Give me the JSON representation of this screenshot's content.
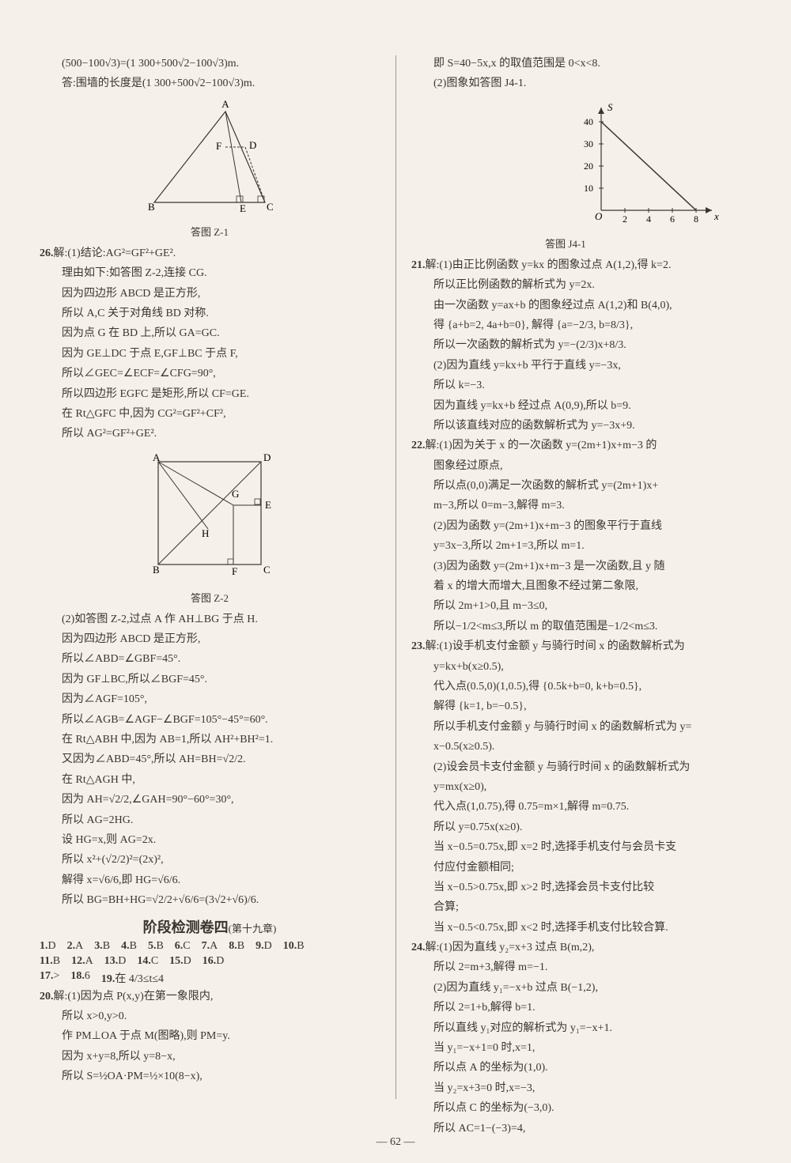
{
  "page_number": "— 62 —",
  "left_col": {
    "top_lines": [
      "(500−100√3)=(1 300+500√2−100√3)m.",
      "答:围墙的长度是(1 300+500√2−100√3)m."
    ],
    "fig1": {
      "caption": "答图 Z-1",
      "labels": {
        "A": "A",
        "B": "B",
        "C": "C",
        "D": "D",
        "E": "E",
        "F": "F"
      }
    },
    "q26": {
      "num": "26.",
      "head": "解:(1)结论:AG²=GF²+GE².",
      "lines": [
        "理由如下:如答图 Z-2,连接 CG.",
        "因为四边形 ABCD 是正方形,",
        "所以 A,C 关于对角线 BD 对称.",
        "因为点 G 在 BD 上,所以 GA=GC.",
        "因为 GE⊥DC 于点 E,GF⊥BC 于点 F,",
        "所以∠GEC=∠ECF=∠CFG=90°,",
        "所以四边形 EGFC 是矩形,所以 CF=GE.",
        "在 Rt△GFC 中,因为 CG²=GF²+CF²,",
        "所以 AG²=GF²+GE²."
      ]
    },
    "fig2": {
      "caption": "答图 Z-2",
      "labels": {
        "A": "A",
        "B": "B",
        "C": "C",
        "D": "D",
        "E": "E",
        "F": "F",
        "G": "G",
        "H": "H"
      }
    },
    "q26b": [
      "(2)如答图 Z-2,过点 A 作 AH⊥BG 于点 H.",
      "因为四边形 ABCD 是正方形,",
      "所以∠ABD=∠GBF=45°.",
      "因为 GF⊥BC,所以∠BGF=45°.",
      "因为∠AGF=105°,",
      "所以∠AGB=∠AGF−∠BGF=105°−45°=60°.",
      "在 Rt△ABH 中,因为 AB=1,所以 AH²+BH²=1.",
      "又因为∠ABD=45°,所以 AH=BH=√2/2.",
      "在 Rt△AGH 中,",
      "因为 AH=√2/2,∠GAH=90°−60°=30°,",
      "所以 AG=2HG.",
      "设 HG=x,则 AG=2x.",
      "所以 x²+(√2/2)²=(2x)²,",
      "解得 x=√6/6,即 HG=√6/6.",
      "所以 BG=BH+HG=√2/2+√6/6=(3√2+√6)/6."
    ],
    "section": {
      "title": "阶段检测卷四",
      "sub": "(第十九章)"
    },
    "mc": [
      {
        "n": "1.",
        "a": "D"
      },
      {
        "n": "2.",
        "a": "A"
      },
      {
        "n": "3.",
        "a": "B"
      },
      {
        "n": "4.",
        "a": "B"
      },
      {
        "n": "5.",
        "a": "B"
      },
      {
        "n": "6.",
        "a": "C"
      },
      {
        "n": "7.",
        "a": "A"
      },
      {
        "n": "8.",
        "a": "B"
      },
      {
        "n": "9.",
        "a": "D"
      },
      {
        "n": "10.",
        "a": "B"
      },
      {
        "n": "11.",
        "a": "B"
      },
      {
        "n": "12.",
        "a": "A"
      },
      {
        "n": "13.",
        "a": "D"
      },
      {
        "n": "14.",
        "a": "C"
      },
      {
        "n": "15.",
        "a": "D"
      },
      {
        "n": "16.",
        "a": "D"
      }
    ],
    "fill": [
      {
        "n": "17.",
        "a": ">"
      },
      {
        "n": "18.",
        "a": "6"
      },
      {
        "n": "19.",
        "a": "在  4/3≤t≤4"
      }
    ],
    "q20": {
      "num": "20.",
      "head": "解:(1)因为点 P(x,y)在第一象限内,",
      "lines": [
        "所以 x>0,y>0.",
        "作 PM⊥OA 于点 M(图略),则 PM=y.",
        "因为 x+y=8,所以 y=8−x,",
        "所以 S=½OA·PM=½×10(8−x),"
      ]
    }
  },
  "right_col": {
    "q20_cont": [
      "即 S=40−5x,x 的取值范围是 0<x<8.",
      "(2)图象如答图 J4-1."
    ],
    "chart": {
      "caption": "答图 J4-1",
      "y_axis": {
        "label": "S",
        "ticks": [
          10,
          20,
          30,
          40
        ]
      },
      "x_axis": {
        "label": "x",
        "ticks": [
          2,
          4,
          6,
          8
        ]
      },
      "xlim": [
        0,
        9
      ],
      "ylim": [
        0,
        45
      ],
      "line_points": [
        [
          0,
          40
        ],
        [
          8,
          0
        ]
      ],
      "axis_color": "#3a3530",
      "line_color": "#3a3530",
      "O": "O"
    },
    "q21": {
      "num": "21.",
      "head": "解:(1)由正比例函数 y=kx 的图象过点 A(1,2),得 k=2.",
      "lines": [
        "所以正比例函数的解析式为 y=2x.",
        "由一次函数 y=ax+b 的图象经过点 A(1,2)和 B(4,0),",
        "得 {a+b=2, 4a+b=0}, 解得 {a=−2/3, b=8/3},",
        "所以一次函数的解析式为 y=−(2/3)x+8/3.",
        "(2)因为直线 y=kx+b 平行于直线 y=−3x,",
        "所以 k=−3.",
        "因为直线 y=kx+b 经过点 A(0,9),所以 b=9.",
        "所以该直线对应的函数解析式为 y=−3x+9."
      ]
    },
    "q22": {
      "num": "22.",
      "head": "解:(1)因为关于 x 的一次函数 y=(2m+1)x+m−3 的",
      "lines": [
        "图象经过原点,",
        "所以点(0,0)满足一次函数的解析式 y=(2m+1)x+",
        "m−3,所以 0=m−3,解得 m=3.",
        "(2)因为函数 y=(2m+1)x+m−3 的图象平行于直线",
        "y=3x−3,所以 2m+1=3,所以 m=1.",
        "(3)因为函数 y=(2m+1)x+m−3 是一次函数,且 y 随",
        "着 x 的增大而增大,且图象不经过第二象限,",
        "所以 2m+1>0,且 m−3≤0,",
        "所以−1/2<m≤3,所以 m 的取值范围是−1/2<m≤3."
      ]
    },
    "q23": {
      "num": "23.",
      "head": "解:(1)设手机支付金额 y 与骑行时间 x 的函数解析式为",
      "lines": [
        "y=kx+b(x≥0.5),",
        "代入点(0.5,0)(1,0.5),得 {0.5k+b=0, k+b=0.5},",
        "解得 {k=1, b=−0.5},",
        "所以手机支付金额 y 与骑行时间 x 的函数解析式为 y=",
        "x−0.5(x≥0.5).",
        "(2)设会员卡支付金额 y 与骑行时间 x 的函数解析式为",
        "y=mx(x≥0),",
        "代入点(1,0.75),得 0.75=m×1,解得 m=0.75.",
        "所以 y=0.75x(x≥0).",
        "当 x−0.5=0.75x,即 x=2 时,选择手机支付与会员卡支",
        "付应付金额相同;",
        "当 x−0.5>0.75x,即 x>2 时,选择会员卡支付比较",
        "合算;",
        "当 x−0.5<0.75x,即 x<2 时,选择手机支付比较合算."
      ]
    },
    "q24": {
      "num": "24.",
      "head": "解:(1)因为直线 y₂=x+3 过点 B(m,2),",
      "lines": [
        "所以 2=m+3,解得 m=−1.",
        "(2)因为直线 y₁=−x+b 过点 B(−1,2),",
        "所以 2=1+b,解得 b=1.",
        "所以直线 y₁对应的解析式为 y₁=−x+1.",
        "当 y₁=−x+1=0 时,x=1,",
        "所以点 A 的坐标为(1,0).",
        "当 y₂=x+3=0 时,x=−3,",
        "所以点 C 的坐标为(−3,0).",
        "所以 AC=1−(−3)=4,"
      ]
    }
  }
}
